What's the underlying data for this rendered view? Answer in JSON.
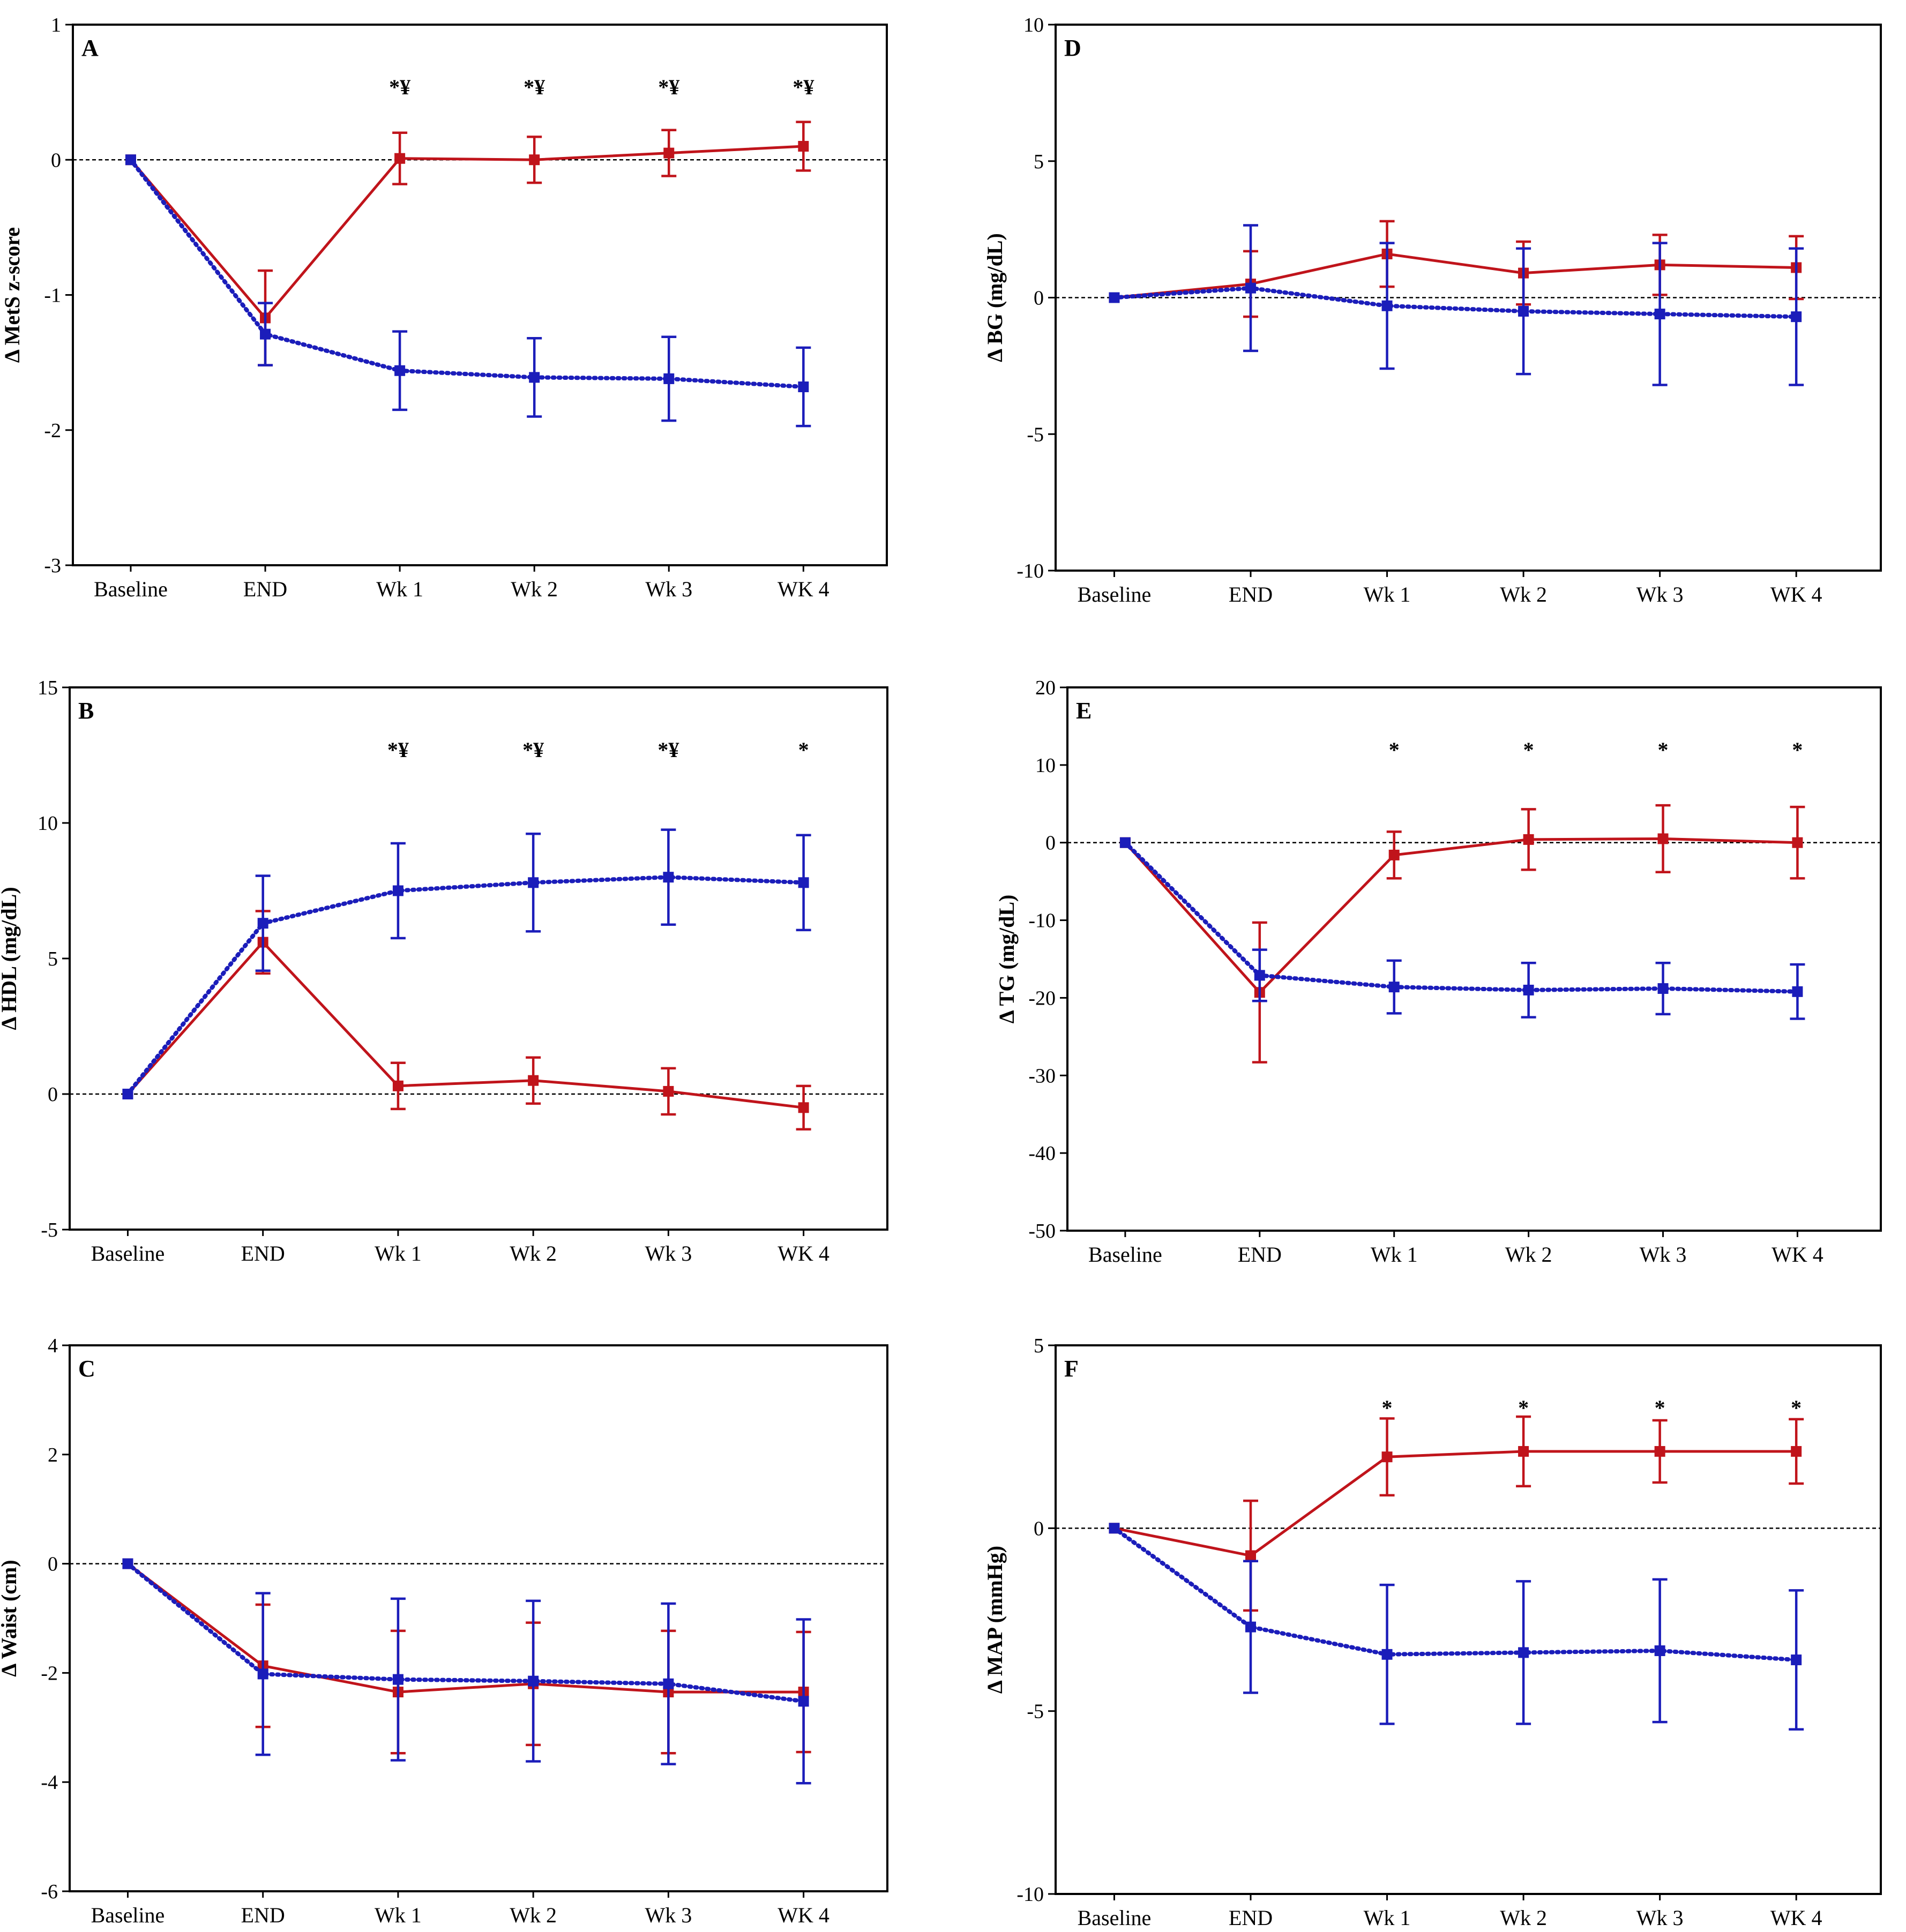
{
  "chart_data": [
    {
      "type": "line",
      "panel_label": "A",
      "ylabel": "Δ MetS z-score",
      "categories": [
        "Baseline",
        "END",
        "Wk 1",
        "Wk 2",
        "Wk 3",
        "WK 4"
      ],
      "ylim": [
        -3,
        1
      ],
      "yticks": [
        "1",
        "0",
        "-1",
        "-2",
        "-3"
      ],
      "ytick_values": [
        1,
        0,
        -1,
        -2,
        -3
      ],
      "reference_line": 0,
      "significance": [
        "",
        "",
        "*¥",
        "*¥",
        "*¥",
        "*¥"
      ],
      "series": [
        {
          "color": "#c0141b",
          "style": "solid",
          "values": [
            0,
            -1.17,
            0.01,
            0.0,
            0.05,
            0.1
          ],
          "err": [
            0,
            0.35,
            0.19,
            0.17,
            0.17,
            0.18
          ]
        },
        {
          "color": "#1b1dba",
          "style": "dotted",
          "values": [
            0,
            -1.29,
            -1.56,
            -1.61,
            -1.62,
            -1.68
          ],
          "err": [
            0,
            0.23,
            0.29,
            0.29,
            0.31,
            0.29
          ]
        }
      ]
    },
    {
      "type": "line",
      "panel_label": "D",
      "ylabel": "Δ BG (mg/dL)",
      "categories": [
        "Baseline",
        "END",
        "Wk 1",
        "Wk 2",
        "Wk 3",
        "WK 4"
      ],
      "ylim": [
        -10,
        10
      ],
      "yticks": [
        "10",
        "5",
        "0",
        "-5",
        "-10"
      ],
      "ytick_values": [
        10,
        5,
        0,
        -5,
        -10
      ],
      "reference_line": 0,
      "significance": [
        "",
        "",
        "",
        "",
        "",
        ""
      ],
      "series": [
        {
          "color": "#c0141b",
          "style": "solid",
          "values": [
            0,
            0.5,
            1.6,
            0.9,
            1.2,
            1.1
          ],
          "err": [
            0,
            1.2,
            1.2,
            1.15,
            1.1,
            1.15
          ]
        },
        {
          "color": "#1b1dba",
          "style": "dotted",
          "values": [
            0,
            0.35,
            -0.3,
            -0.5,
            -0.6,
            -0.7
          ],
          "err": [
            0,
            2.3,
            2.3,
            2.3,
            2.6,
            2.5
          ]
        }
      ]
    },
    {
      "type": "line",
      "panel_label": "B",
      "ylabel": "Δ HDL (mg/dL)",
      "categories": [
        "Baseline",
        "END",
        "Wk 1",
        "Wk 2",
        "Wk 3",
        "WK 4"
      ],
      "ylim": [
        -5,
        15
      ],
      "yticks": [
        "15",
        "10",
        "5",
        "0",
        "-5"
      ],
      "ytick_values": [
        15,
        10,
        5,
        0,
        -5
      ],
      "reference_line": 0,
      "significance": [
        "",
        "",
        "*¥",
        "*¥",
        "*¥",
        "*"
      ],
      "series": [
        {
          "color": "#c0141b",
          "style": "solid",
          "values": [
            0,
            5.6,
            0.3,
            0.5,
            0.1,
            -0.5
          ],
          "err": [
            0,
            1.15,
            0.85,
            0.85,
            0.85,
            0.8
          ]
        },
        {
          "color": "#1b1dba",
          "style": "dotted",
          "values": [
            0,
            6.3,
            7.5,
            7.8,
            8.0,
            7.8
          ],
          "err": [
            0,
            1.75,
            1.75,
            1.8,
            1.75,
            1.75
          ]
        }
      ]
    },
    {
      "type": "line",
      "panel_label": "E",
      "ylabel": "Δ TG (mg/dL)",
      "categories": [
        "Baseline",
        "END",
        "Wk 1",
        "Wk 2",
        "Wk 3",
        "WK 4"
      ],
      "ylim": [
        -50,
        20
      ],
      "yticks": [
        "20",
        "10",
        "0",
        "-10",
        "-20",
        "-30",
        "-40",
        "-50"
      ],
      "ytick_values": [
        20,
        10,
        0,
        -10,
        -20,
        -30,
        -40,
        -50
      ],
      "reference_line": 0,
      "significance": [
        "",
        "",
        "*",
        "*",
        "*",
        "*"
      ],
      "series": [
        {
          "color": "#c0141b",
          "style": "solid",
          "values": [
            0,
            -19.3,
            -1.6,
            0.4,
            0.5,
            0.0
          ],
          "err": [
            0,
            9.0,
            3.0,
            3.9,
            4.3,
            4.6
          ]
        },
        {
          "color": "#1b1dba",
          "style": "dotted",
          "values": [
            0,
            -17.1,
            -18.6,
            -19.0,
            -18.8,
            -19.2
          ],
          "err": [
            0,
            3.3,
            3.4,
            3.5,
            3.3,
            3.5
          ]
        }
      ]
    },
    {
      "type": "line",
      "panel_label": "C",
      "ylabel": "Δ Waist (cm)",
      "categories": [
        "Baseline",
        "END",
        "Wk 1",
        "Wk 2",
        "Wk 3",
        "WK 4"
      ],
      "ylim": [
        -6,
        4
      ],
      "yticks": [
        "4",
        "2",
        "0",
        "-2",
        "-4",
        "-6"
      ],
      "ytick_values": [
        4,
        2,
        0,
        -2,
        -4,
        -6
      ],
      "reference_line": 0,
      "significance": [
        "",
        "",
        "",
        "",
        "",
        ""
      ],
      "series": [
        {
          "color": "#c0141b",
          "style": "solid",
          "values": [
            0,
            -1.87,
            -2.35,
            -2.2,
            -2.35,
            -2.35
          ],
          "err": [
            0,
            1.12,
            1.12,
            1.12,
            1.12,
            1.1
          ]
        },
        {
          "color": "#1b1dba",
          "style": "dotted",
          "values": [
            0,
            -2.02,
            -2.12,
            -2.15,
            -2.2,
            -2.52
          ],
          "err": [
            0,
            1.48,
            1.48,
            1.47,
            1.47,
            1.5
          ]
        }
      ]
    },
    {
      "type": "line",
      "panel_label": "F",
      "ylabel": "Δ MAP (mmHg)",
      "categories": [
        "Baseline",
        "END",
        "Wk 1",
        "Wk 2",
        "Wk 3",
        "WK 4"
      ],
      "ylim": [
        -10,
        5
      ],
      "yticks": [
        "5",
        "0",
        "-5",
        "-10"
      ],
      "ytick_values": [
        5,
        0,
        -5,
        -10
      ],
      "reference_line": 0,
      "significance": [
        "",
        "",
        "*",
        "*",
        "*",
        "*"
      ],
      "series": [
        {
          "color": "#c0141b",
          "style": "solid",
          "values": [
            0,
            -0.75,
            1.95,
            2.1,
            2.1,
            2.1
          ],
          "err": [
            0,
            1.5,
            1.05,
            0.95,
            0.85,
            0.88
          ]
        },
        {
          "color": "#1b1dba",
          "style": "dotted",
          "values": [
            0,
            -2.7,
            -3.45,
            -3.4,
            -3.35,
            -3.6
          ],
          "err": [
            0,
            1.8,
            1.9,
            1.95,
            1.95,
            1.9
          ]
        }
      ]
    }
  ]
}
